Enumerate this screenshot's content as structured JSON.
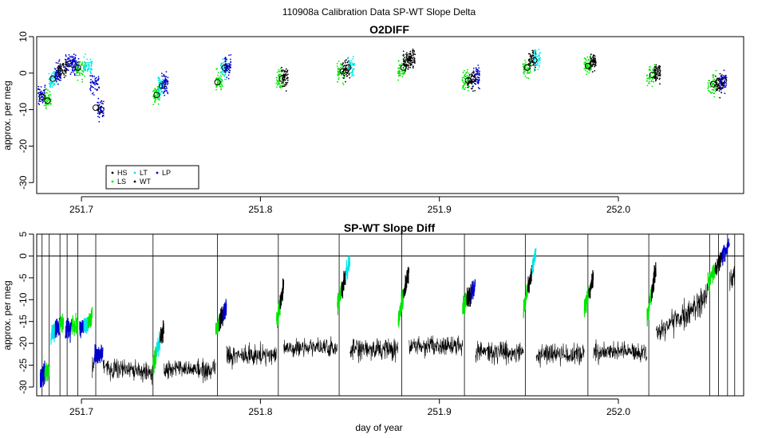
{
  "figure": {
    "title": "110908a   Calibration Data SP-WT Slope Delta"
  },
  "chart_data": [
    {
      "type": "scatter",
      "title": "O2DIFF",
      "xlabel": "",
      "ylabel": "approx. per meg",
      "xlim": [
        251.675,
        252.07
      ],
      "ylim": [
        -33,
        10
      ],
      "x_ticks": [
        251.7,
        251.8,
        251.9,
        252.0
      ],
      "x_tick_labels": [
        "251.7",
        "251.8",
        "251.9",
        "252.0"
      ],
      "y_ticks": [
        -30,
        -20,
        -10,
        0,
        10
      ],
      "y_tick_labels": [
        "-30",
        "-20",
        "-10",
        "0",
        "10"
      ],
      "legend": {
        "position": "bottom-left",
        "entries": [
          {
            "label": "HS",
            "color": "#000000"
          },
          {
            "label": "LS",
            "color": "#00e600"
          },
          {
            "label": "LT",
            "color": "#00e5e5"
          },
          {
            "label": "WT",
            "color": "#000000"
          },
          {
            "label": "LP",
            "color": "#0000cc"
          }
        ]
      },
      "colors": {
        "HS": "#000000",
        "LS": "#00e600",
        "LT": "#00e5e5",
        "WT": "#000000",
        "LP": "#0000cc"
      },
      "clusters": [
        {
          "x": [
            251.677,
            251.687
          ],
          "segments": [
            [
              251.677,
              -6,
              "LP"
            ],
            [
              251.68,
              -7,
              "LS"
            ],
            [
              251.683,
              -2,
              "LT"
            ],
            [
              251.686,
              0,
              "LP"
            ]
          ]
        },
        {
          "x": [
            251.687,
            251.697
          ],
          "segments": [
            [
              251.688,
              1,
              "HS"
            ],
            [
              251.692,
              3,
              "LP"
            ],
            [
              251.696,
              2,
              "LP"
            ]
          ]
        },
        {
          "x": [
            251.697,
            251.713
          ],
          "segments": [
            [
              251.698,
              1,
              "LS"
            ],
            [
              251.702,
              2,
              "LT"
            ],
            [
              251.706,
              -3,
              "LP"
            ],
            [
              251.71,
              -10,
              "LP"
            ]
          ]
        },
        {
          "x": [
            251.74,
            251.747
          ],
          "segments": [
            [
              251.741,
              -6,
              "LS"
            ],
            [
              251.744,
              -4,
              "LT"
            ],
            [
              251.746,
              -3,
              "LP"
            ]
          ]
        },
        {
          "x": [
            251.775,
            251.781
          ],
          "segments": [
            [
              251.776,
              -2,
              "LS"
            ],
            [
              251.779,
              1,
              "LT"
            ],
            [
              251.781,
              2,
              "LP"
            ]
          ]
        },
        {
          "x": [
            251.809,
            251.814
          ],
          "segments": [
            [
              251.81,
              -2,
              "LS"
            ],
            [
              251.813,
              -1,
              "HS"
            ]
          ]
        },
        {
          "x": [
            251.843,
            251.85
          ],
          "segments": [
            [
              251.844,
              0,
              "LS"
            ],
            [
              251.847,
              1,
              "HS"
            ],
            [
              251.85,
              2,
              "LT"
            ]
          ]
        },
        {
          "x": [
            251.877,
            251.884
          ],
          "segments": [
            [
              251.878,
              1,
              "LS"
            ],
            [
              251.881,
              3,
              "HS"
            ],
            [
              251.884,
              4,
              "HS"
            ]
          ]
        },
        {
          "x": [
            251.913,
            251.92
          ],
          "segments": [
            [
              251.914,
              -2,
              "LS"
            ],
            [
              251.917,
              -2,
              "HS"
            ],
            [
              251.92,
              -1,
              "LP"
            ]
          ]
        },
        {
          "x": [
            251.947,
            251.954
          ],
          "segments": [
            [
              251.948,
              1,
              "LS"
            ],
            [
              251.951,
              4,
              "HS"
            ],
            [
              251.954,
              4,
              "LT"
            ]
          ]
        },
        {
          "x": [
            251.981,
            251.987
          ],
          "segments": [
            [
              251.982,
              2,
              "LS"
            ],
            [
              251.985,
              3,
              "HS"
            ]
          ]
        },
        {
          "x": [
            252.016,
            252.022
          ],
          "segments": [
            [
              252.017,
              -1,
              "LS"
            ],
            [
              252.021,
              0,
              "HS"
            ]
          ]
        },
        {
          "x": [
            252.05,
            252.06
          ],
          "segments": [
            [
              252.051,
              -3,
              "LS"
            ],
            [
              252.055,
              -3,
              "HS"
            ],
            [
              252.058,
              -2,
              "LP"
            ]
          ]
        }
      ],
      "open_circles": [
        [
          251.678,
          -6.5
        ],
        [
          251.681,
          -7.5
        ],
        [
          251.684,
          -1.5
        ],
        [
          251.688,
          0.5
        ],
        [
          251.693,
          2.5
        ],
        [
          251.698,
          1.5
        ],
        [
          251.708,
          -9.5
        ],
        [
          251.711,
          -10
        ],
        [
          251.742,
          -6
        ],
        [
          251.745,
          -3.5
        ],
        [
          251.776,
          -2.5
        ],
        [
          251.78,
          1.5
        ],
        [
          251.812,
          -1.5
        ],
        [
          251.846,
          0.5
        ],
        [
          251.849,
          1.5
        ],
        [
          251.88,
          1.5
        ],
        [
          251.883,
          4.5
        ],
        [
          251.916,
          -2
        ],
        [
          251.919,
          -1.5
        ],
        [
          251.949,
          1.5
        ],
        [
          251.953,
          3.5
        ],
        [
          251.983,
          2
        ],
        [
          251.986,
          3
        ],
        [
          252.019,
          -0.5
        ],
        [
          252.022,
          0.5
        ],
        [
          252.053,
          -3
        ],
        [
          252.057,
          -3.5
        ],
        [
          252.059,
          -2
        ]
      ]
    },
    {
      "type": "line",
      "title": "SP-WT Slope Diff",
      "xlabel": "day of year",
      "ylabel": "approx. per meg",
      "xlim": [
        251.675,
        252.07
      ],
      "ylim": [
        -32,
        5
      ],
      "x_ticks": [
        251.7,
        251.8,
        251.9,
        252.0
      ],
      "x_tick_labels": [
        "251.7",
        "251.8",
        "251.9",
        "252.0"
      ],
      "y_ticks": [
        -30,
        -25,
        -20,
        -15,
        -10,
        -5,
        0,
        5
      ],
      "y_tick_labels": [
        "-30",
        "-25",
        "-20",
        "-15",
        "-10",
        "-5",
        "0",
        "5"
      ],
      "reference_line_y": 0,
      "baseline": [
        [
          251.7,
          -25
        ],
        [
          251.74,
          -26.5
        ],
        [
          251.743,
          -26
        ],
        [
          251.776,
          -26
        ],
        [
          251.78,
          -23
        ],
        [
          251.81,
          -22.5
        ],
        [
          251.812,
          -21
        ],
        [
          251.844,
          -21
        ],
        [
          251.848,
          -21.5
        ],
        [
          251.878,
          -21.5
        ],
        [
          251.882,
          -20.5
        ],
        [
          251.913,
          -20.5
        ],
        [
          251.917,
          -22
        ],
        [
          251.947,
          -22
        ],
        [
          251.951,
          -22.5
        ],
        [
          251.982,
          -22.5
        ],
        [
          251.986,
          -22
        ],
        [
          252.016,
          -22
        ],
        [
          252.022,
          -17
        ],
        [
          252.04,
          -13
        ],
        [
          252.05,
          -8
        ],
        [
          252.065,
          -5
        ]
      ],
      "spikes_x": [
        251.678,
        251.682,
        251.688,
        251.692,
        251.698,
        251.708,
        251.74,
        251.776,
        251.81,
        251.844,
        251.879,
        251.914,
        251.948,
        251.983,
        252.017,
        252.051,
        252.056,
        252.061,
        252.065
      ],
      "calibration_runs": [
        {
          "x0": 251.677,
          "x1": 251.682,
          "y0": -28,
          "y1": -26,
          "colors": [
            "LP",
            "LS"
          ]
        },
        {
          "x0": 251.683,
          "x1": 251.69,
          "y0": -18,
          "y1": -15,
          "colors": [
            "LT",
            "LP",
            "LS"
          ]
        },
        {
          "x0": 251.691,
          "x1": 251.698,
          "y0": -17,
          "y1": -16,
          "colors": [
            "LP",
            "LS"
          ]
        },
        {
          "x0": 251.699,
          "x1": 251.706,
          "y0": -17,
          "y1": -14,
          "colors": [
            "LP",
            "LT",
            "LS"
          ]
        },
        {
          "x0": 251.707,
          "x1": 251.712,
          "y0": -23,
          "y1": -22,
          "colors": [
            "LP"
          ]
        },
        {
          "x0": 251.74,
          "x1": 251.746,
          "y0": -25,
          "y1": -16,
          "colors": [
            "LS",
            "LT",
            "HS"
          ]
        },
        {
          "x0": 251.775,
          "x1": 251.781,
          "y0": -17,
          "y1": -12,
          "colors": [
            "LS",
            "HS",
            "LP"
          ]
        },
        {
          "x0": 251.809,
          "x1": 251.813,
          "y0": -15,
          "y1": -7,
          "colors": [
            "LS",
            "HS"
          ]
        },
        {
          "x0": 251.843,
          "x1": 251.85,
          "y0": -11,
          "y1": -1,
          "colors": [
            "LS",
            "HS",
            "LT"
          ]
        },
        {
          "x0": 251.877,
          "x1": 251.883,
          "y0": -15,
          "y1": -3,
          "colors": [
            "LS",
            "HS"
          ]
        },
        {
          "x0": 251.913,
          "x1": 251.92,
          "y0": -12,
          "y1": -7,
          "colors": [
            "LS",
            "HS",
            "LP"
          ]
        },
        {
          "x0": 251.947,
          "x1": 251.954,
          "y0": -12,
          "y1": 1,
          "colors": [
            "LS",
            "HS",
            "LT"
          ]
        },
        {
          "x0": 251.981,
          "x1": 251.986,
          "y0": -12,
          "y1": -5,
          "colors": [
            "LS",
            "HS"
          ]
        },
        {
          "x0": 252.016,
          "x1": 252.021,
          "y0": -14,
          "y1": -3,
          "colors": [
            "LS",
            "HS"
          ]
        },
        {
          "x0": 252.05,
          "x1": 252.062,
          "y0": -6,
          "y1": 3,
          "colors": [
            "LS",
            "HS",
            "LP"
          ]
        }
      ]
    }
  ]
}
